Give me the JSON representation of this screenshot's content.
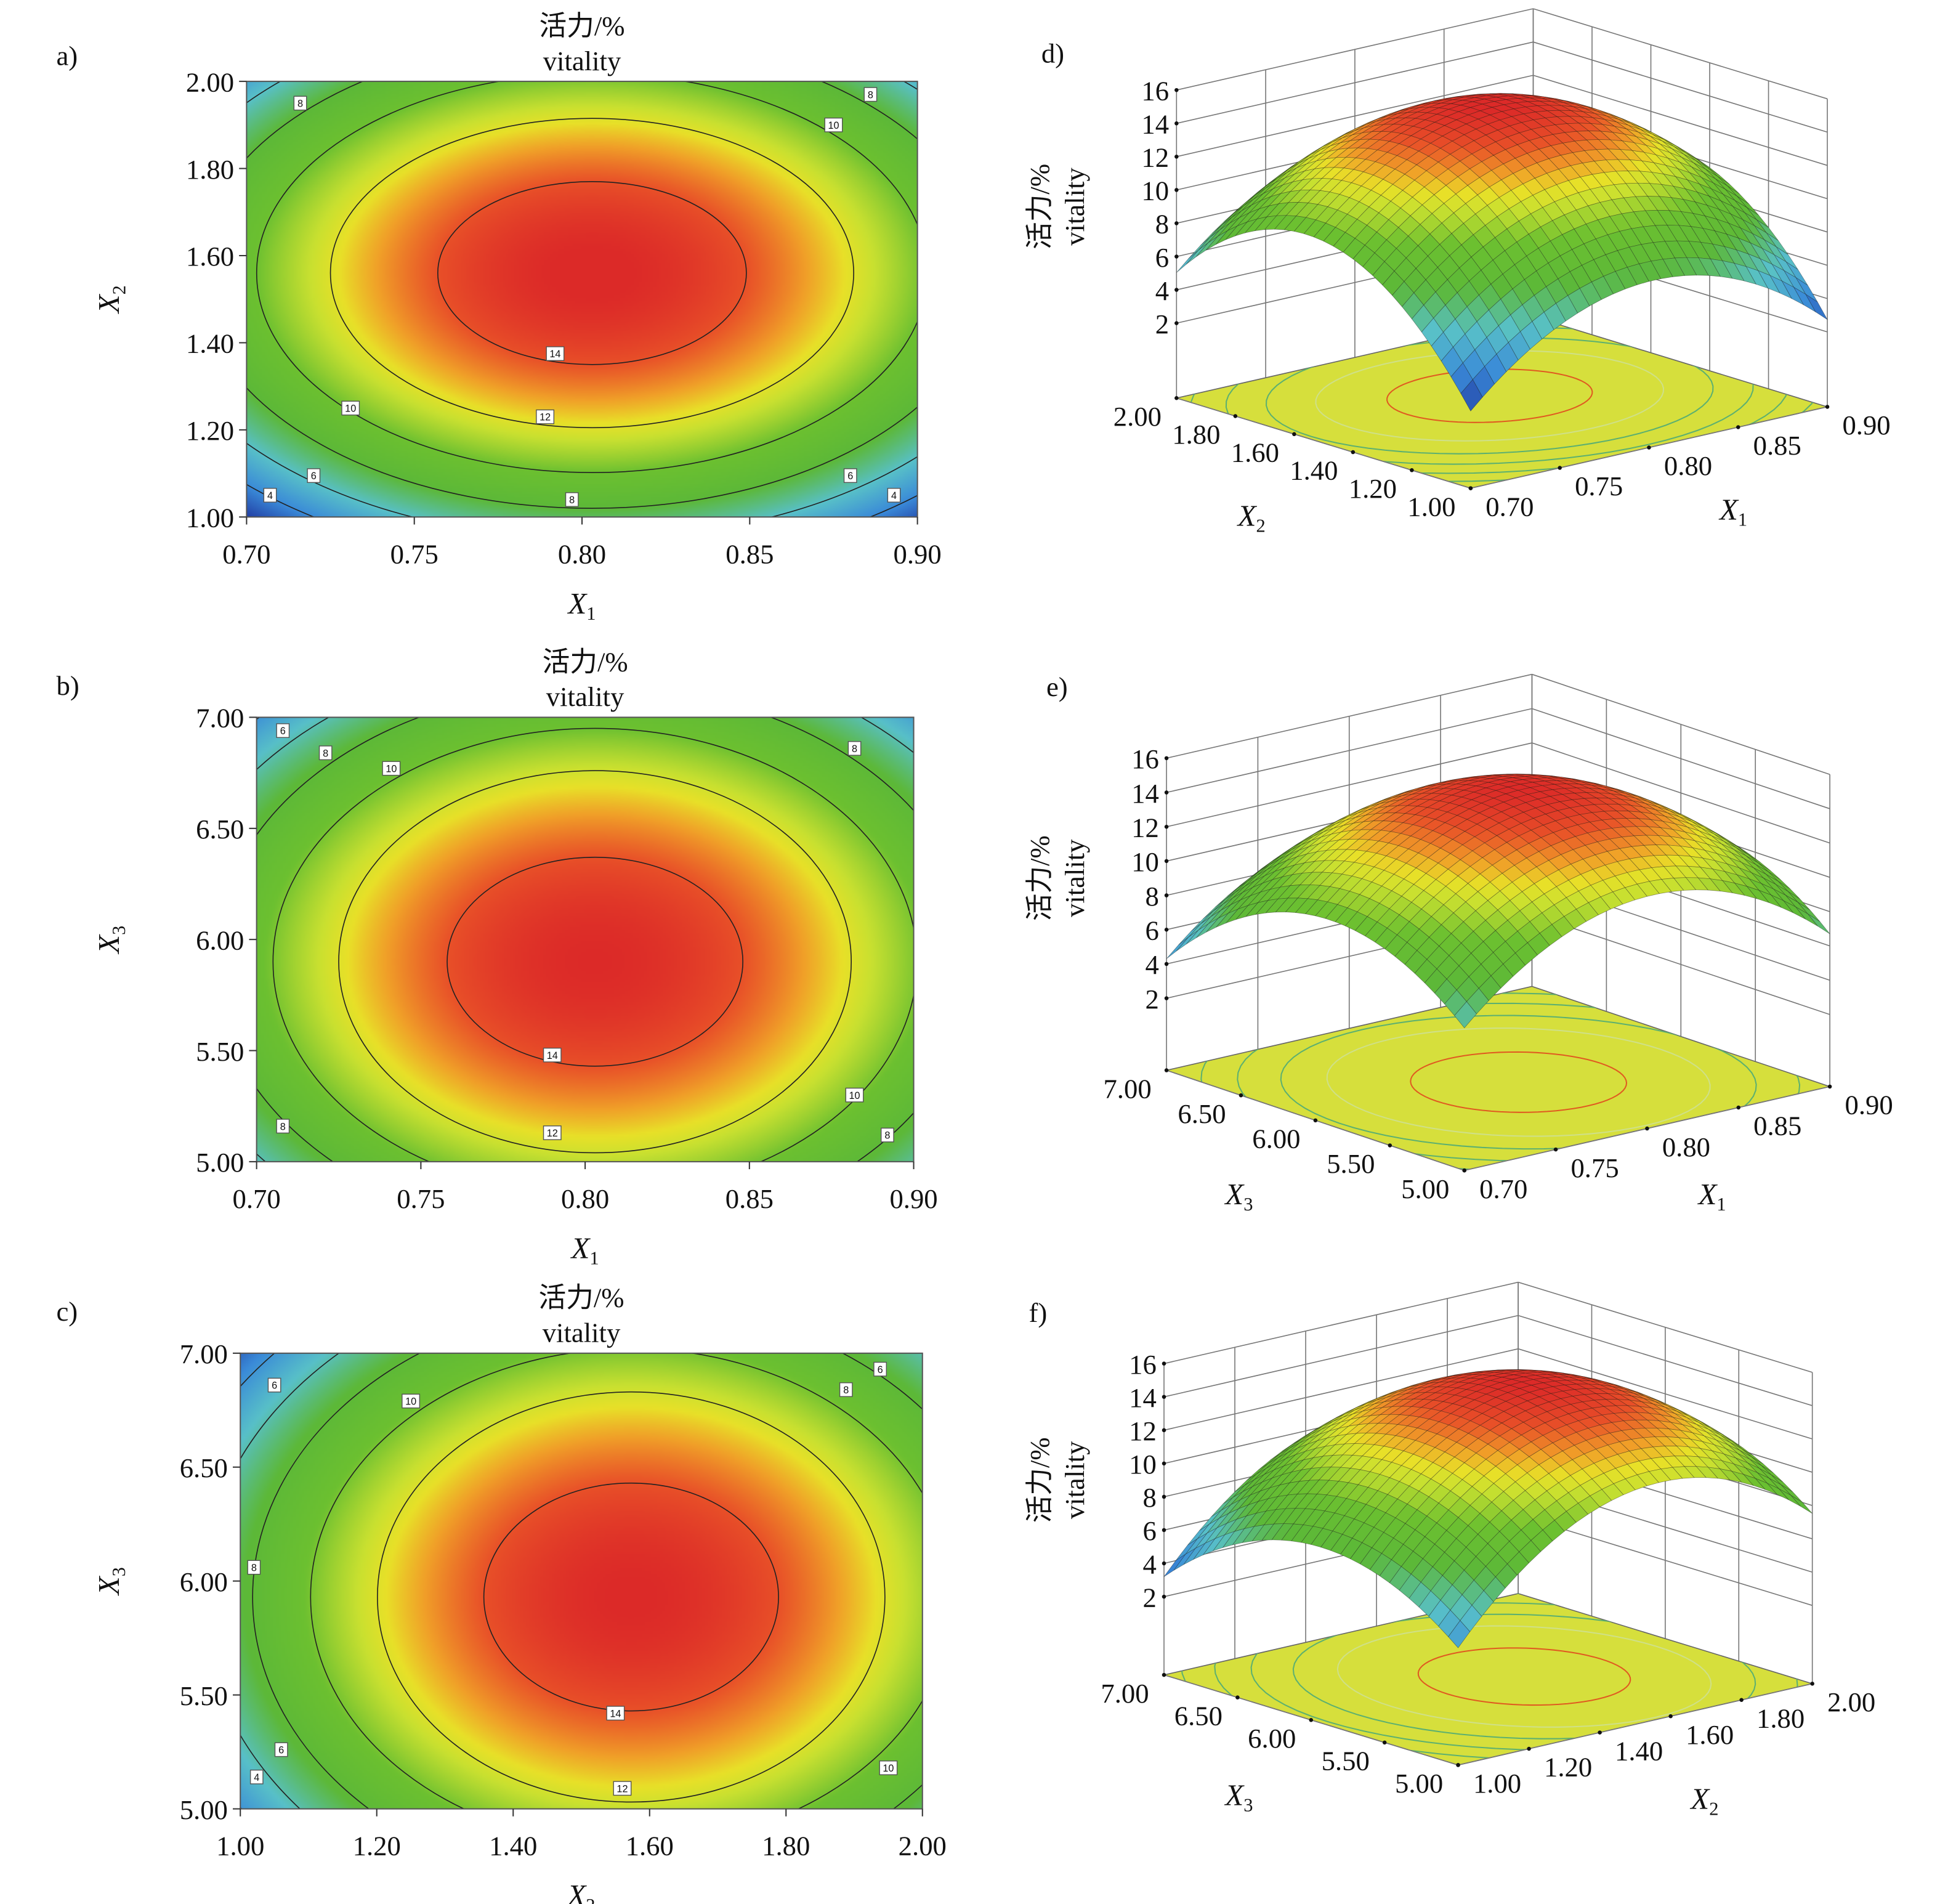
{
  "chart_data": [
    {
      "id": "a",
      "type": "contour",
      "panel_label": "a)",
      "title": [
        "活力/%",
        "vitality"
      ],
      "xlabel": {
        "var": "X",
        "sub": "1"
      },
      "ylabel": {
        "var": "X",
        "sub": "2"
      },
      "xticks": [
        "0.70",
        "0.75",
        "0.80",
        "0.85",
        "0.90"
      ],
      "yticks": [
        "1.00",
        "1.20",
        "1.40",
        "1.60",
        "1.80",
        "2.00"
      ],
      "center": [
        0.803,
        1.56
      ],
      "contours": [
        {
          "level": 14,
          "rx": 0.046,
          "ry": 0.21
        },
        {
          "level": 12,
          "rx": 0.078,
          "ry": 0.355
        },
        {
          "level": 10,
          "rx": 0.1,
          "ry": 0.458
        },
        {
          "level": 8,
          "rx": 0.118,
          "ry": 0.54
        },
        {
          "level": 6,
          "rx": 0.134,
          "ry": 0.611
        },
        {
          "level": 4,
          "rx": 0.148,
          "ry": 0.676
        }
      ],
      "labels": [
        {
          "text": "8",
          "x": 0.716,
          "y": 1.95
        },
        {
          "text": "8",
          "x": 0.886,
          "y": 1.97
        },
        {
          "text": "10",
          "x": 0.875,
          "y": 1.9
        },
        {
          "text": "14",
          "x": 0.792,
          "y": 1.375
        },
        {
          "text": "10",
          "x": 0.731,
          "y": 1.25
        },
        {
          "text": "12",
          "x": 0.789,
          "y": 1.23
        },
        {
          "text": "6",
          "x": 0.72,
          "y": 1.095
        },
        {
          "text": "6",
          "x": 0.88,
          "y": 1.095
        },
        {
          "text": "4",
          "x": 0.707,
          "y": 1.05
        },
        {
          "text": "4",
          "x": 0.893,
          "y": 1.05
        },
        {
          "text": "8",
          "x": 0.797,
          "y": 1.04
        }
      ]
    },
    {
      "id": "b",
      "type": "contour",
      "panel_label": "b)",
      "title": [
        "活力/%",
        "vitality"
      ],
      "xlabel": {
        "var": "X",
        "sub": "1"
      },
      "ylabel": {
        "var": "X",
        "sub": "3"
      },
      "xticks": [
        "0.70",
        "0.75",
        "0.80",
        "0.85",
        "0.90"
      ],
      "yticks": [
        "5.00",
        "5.50",
        "6.00",
        "6.50",
        "7.00"
      ],
      "center": [
        0.803,
        5.9
      ],
      "contours": [
        {
          "level": 14,
          "rx": 0.045,
          "ry": 0.47
        },
        {
          "level": 12,
          "rx": 0.078,
          "ry": 0.86
        },
        {
          "level": 10,
          "rx": 0.098,
          "ry": 1.05
        },
        {
          "level": 8,
          "rx": 0.116,
          "ry": 1.24
        },
        {
          "level": 6,
          "rx": 0.131,
          "ry": 1.4
        },
        {
          "level": 4,
          "rx": 0.145,
          "ry": 1.55
        }
      ],
      "labels": [
        {
          "text": "6",
          "x": 0.708,
          "y": 6.94
        },
        {
          "text": "8",
          "x": 0.721,
          "y": 6.84
        },
        {
          "text": "10",
          "x": 0.741,
          "y": 6.77
        },
        {
          "text": "8",
          "x": 0.882,
          "y": 6.86
        },
        {
          "text": "14",
          "x": 0.79,
          "y": 5.48
        },
        {
          "text": "12",
          "x": 0.79,
          "y": 5.13
        },
        {
          "text": "8",
          "x": 0.708,
          "y": 5.16
        },
        {
          "text": "10",
          "x": 0.882,
          "y": 5.3
        },
        {
          "text": "8",
          "x": 0.892,
          "y": 5.12
        }
      ]
    },
    {
      "id": "c",
      "type": "contour",
      "panel_label": "c)",
      "title": [
        "活力/%",
        "vitality"
      ],
      "xlabel": {
        "var": "X",
        "sub": "2"
      },
      "ylabel": {
        "var": "X",
        "sub": "3"
      },
      "xticks": [
        "1.00",
        "1.20",
        "1.40",
        "1.60",
        "1.80",
        "2.00"
      ],
      "yticks": [
        "5.00",
        "5.50",
        "6.00",
        "6.50",
        "7.00"
      ],
      "center": [
        1.573,
        5.93
      ],
      "contours": [
        {
          "level": 14,
          "rx": 0.216,
          "ry": 0.5
        },
        {
          "level": 12,
          "rx": 0.372,
          "ry": 0.9
        },
        {
          "level": 10,
          "rx": 0.47,
          "ry": 1.09
        },
        {
          "level": 8,
          "rx": 0.555,
          "ry": 1.29
        },
        {
          "level": 6,
          "rx": 0.63,
          "ry": 1.46
        },
        {
          "level": 4,
          "rx": 0.7,
          "ry": 1.61
        }
      ],
      "labels": [
        {
          "text": "6",
          "x": 1.05,
          "y": 6.86
        },
        {
          "text": "10",
          "x": 1.25,
          "y": 6.79
        },
        {
          "text": "8",
          "x": 1.888,
          "y": 6.84
        },
        {
          "text": "6",
          "x": 1.938,
          "y": 6.93
        },
        {
          "text": "8",
          "x": 1.02,
          "y": 6.06
        },
        {
          "text": "14",
          "x": 1.55,
          "y": 5.42
        },
        {
          "text": "6",
          "x": 1.06,
          "y": 5.26
        },
        {
          "text": "4",
          "x": 1.024,
          "y": 5.14
        },
        {
          "text": "12",
          "x": 1.56,
          "y": 5.09
        },
        {
          "text": "10",
          "x": 1.95,
          "y": 5.18
        }
      ]
    },
    {
      "id": "d",
      "type": "surface",
      "panel_label": "d)",
      "surface_of": "a",
      "zlabel": [
        "活力/%",
        "vitality"
      ],
      "zticks": [
        "2",
        "4",
        "6",
        "8",
        "10",
        "12",
        "14",
        "16"
      ],
      "xlabel": {
        "var": "X",
        "sub": "1"
      },
      "xticks": [
        "0.70",
        "0.75",
        "0.80",
        "0.85",
        "0.90"
      ],
      "ylabel": {
        "var": "X",
        "sub": "2"
      },
      "yticks": [
        "1.00",
        "1.20",
        "1.40",
        "1.60",
        "1.80",
        "2.00"
      ]
    },
    {
      "id": "e",
      "type": "surface",
      "panel_label": "e)",
      "surface_of": "b",
      "zlabel": [
        "活力/%",
        "vitality"
      ],
      "zticks": [
        "2",
        "4",
        "6",
        "8",
        "10",
        "12",
        "14",
        "16"
      ],
      "xlabel": {
        "var": "X",
        "sub": "1"
      },
      "xticks": [
        "0.70",
        "0.75",
        "0.80",
        "0.85",
        "0.90"
      ],
      "ylabel": {
        "var": "X",
        "sub": "3"
      },
      "yticks": [
        "5.00",
        "5.50",
        "6.00",
        "6.50",
        "7.00"
      ]
    },
    {
      "id": "f",
      "type": "surface",
      "panel_label": "f)",
      "surface_of": "c",
      "zlabel": [
        "活力/%",
        "vitality"
      ],
      "zticks": [
        "2",
        "4",
        "6",
        "8",
        "10",
        "12",
        "14",
        "16"
      ],
      "xlabel": {
        "var": "X",
        "sub": "2"
      },
      "xticks": [
        "1.00",
        "1.20",
        "1.40",
        "1.60",
        "1.80",
        "2.00"
      ],
      "ylabel": {
        "var": "X",
        "sub": "3"
      },
      "yticks": [
        "5.00",
        "5.50",
        "6.00",
        "6.50",
        "7.00"
      ]
    }
  ],
  "colors": {
    "colormap": [
      "#2038a0",
      "#3a8ad8",
      "#58c0c8",
      "#5cb838",
      "#6cc030",
      "#c8e030",
      "#e8e028",
      "#f0a028",
      "#e85028",
      "#dc2a28"
    ],
    "floor": "#d6df3c",
    "contour_line": "#222222"
  }
}
